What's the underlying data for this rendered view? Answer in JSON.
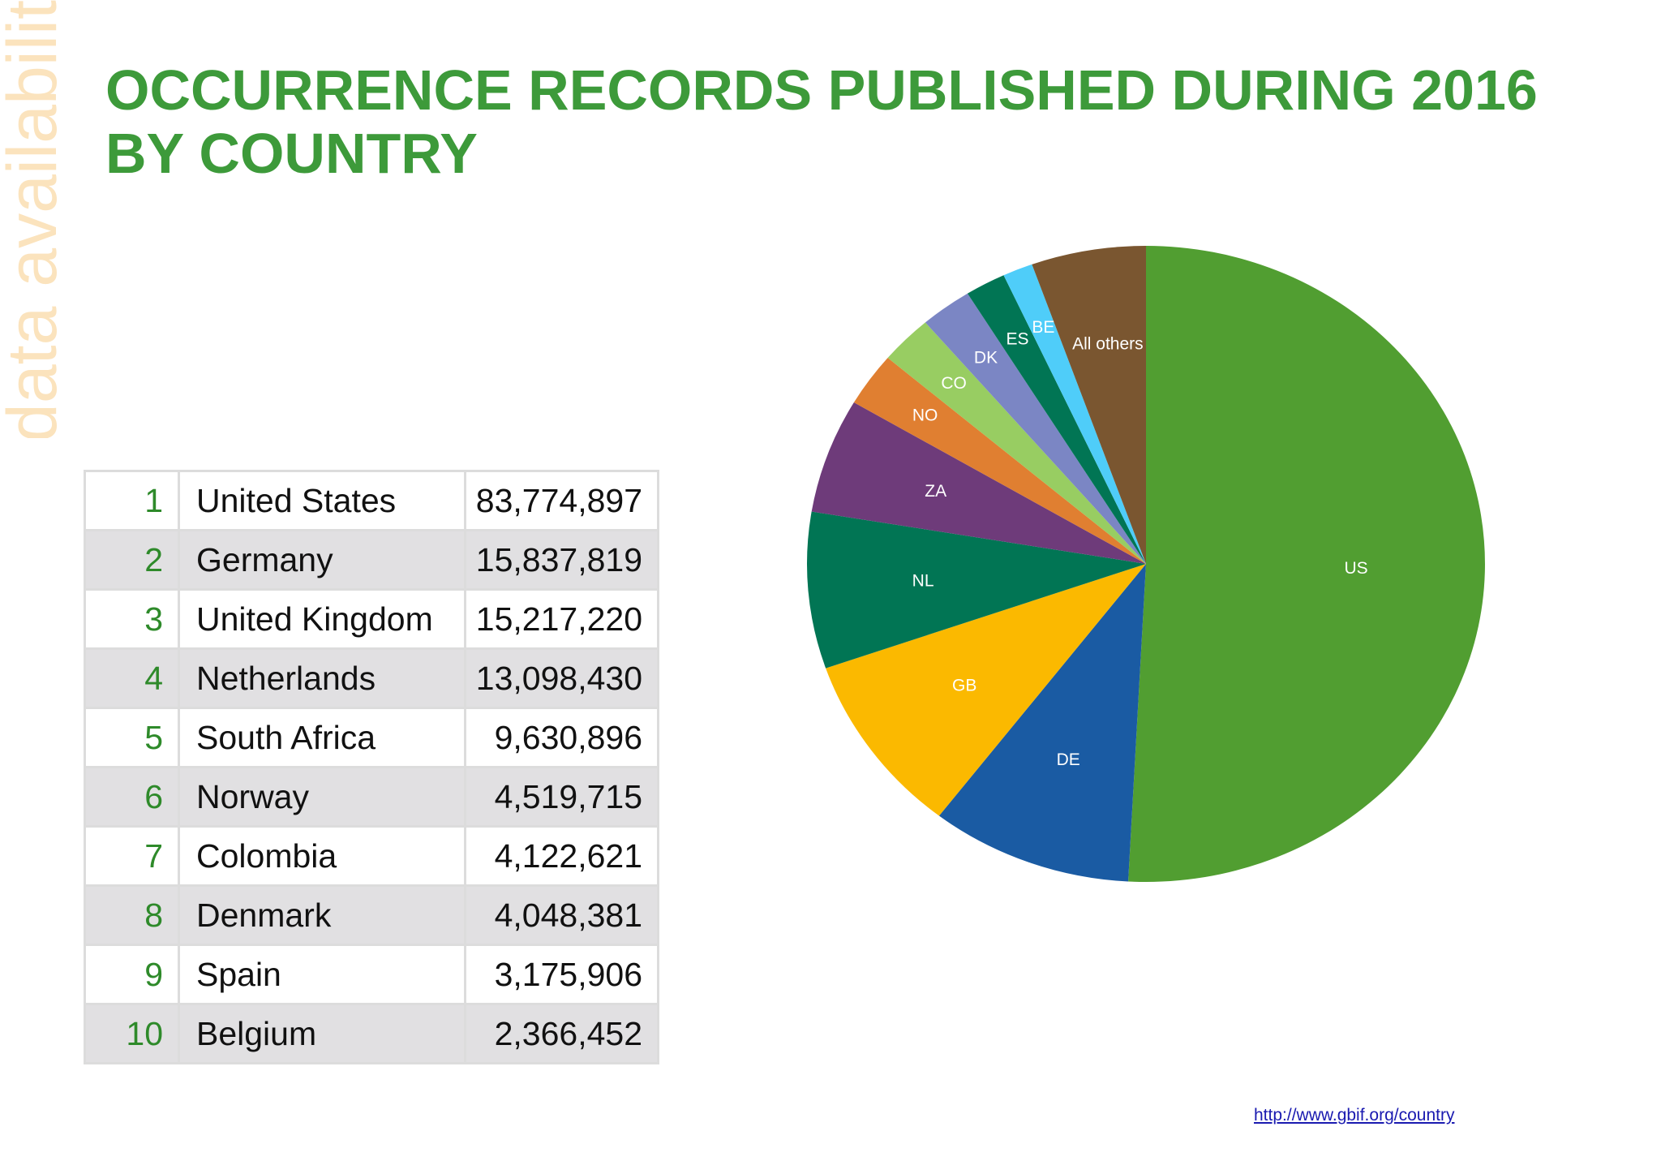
{
  "side_label": "data availability",
  "title": {
    "line1": "OCCURRENCE RECORDS PUBLISHED DURING 2016",
    "line2": "BY COUNTRY"
  },
  "table": {
    "rows": [
      {
        "rank": "1",
        "country": "United States",
        "value": "83,774,897"
      },
      {
        "rank": "2",
        "country": "Germany",
        "value": "15,837,819"
      },
      {
        "rank": "3",
        "country": "United Kingdom",
        "value": "15,217,220"
      },
      {
        "rank": "4",
        "country": "Netherlands",
        "value": "13,098,430"
      },
      {
        "rank": "5",
        "country": "South Africa",
        "value": "9,630,896"
      },
      {
        "rank": "6",
        "country": "Norway",
        "value": "4,519,715"
      },
      {
        "rank": "7",
        "country": "Colombia",
        "value": "4,122,621"
      },
      {
        "rank": "8",
        "country": "Denmark",
        "value": "4,048,381"
      },
      {
        "rank": "9",
        "country": "Spain",
        "value": "3,175,906"
      },
      {
        "rank": "10",
        "country": "Belgium",
        "value": "2,366,452"
      }
    ]
  },
  "chart_data": {
    "type": "pie",
    "categories": [
      "US",
      "DE",
      "GB",
      "NL",
      "ZA",
      "NO",
      "CO",
      "DK",
      "ES",
      "BE",
      "All others"
    ],
    "values": [
      83774897,
      15837819,
      15217220,
      13098430,
      9630896,
      4519715,
      4122621,
      4048381,
      3175906,
      2366452,
      9000000
    ],
    "colors": [
      "#519e31",
      "#1a5ba3",
      "#fbb900",
      "#017554",
      "#6e3b7a",
      "#e07f31",
      "#98cd62",
      "#7b86c4",
      "#017554",
      "#4fcdf9",
      "#7a5630"
    ],
    "title": "",
    "legend": "none"
  },
  "source_link": "http://www.gbif.org/country"
}
